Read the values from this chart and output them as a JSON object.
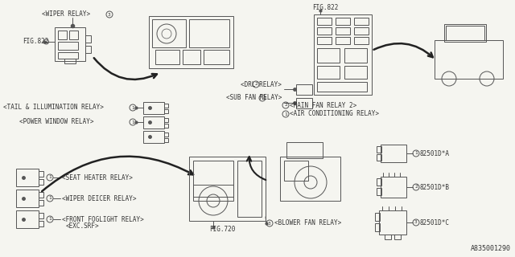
{
  "bg_color": "#f5f5f0",
  "line_color": "#555555",
  "text_color": "#333333",
  "part_number": "A835001290",
  "labels": {
    "wiper_relay": "<WIPER RELAY>",
    "fig822_left": "FIG.822",
    "fig822_right": "FIG.822",
    "tail_relay": "<TAIL & ILLUMINATION RELAY>",
    "power_window": "<POWER WINDOW RELAY>",
    "drl_relay": "<DRL RELAY>",
    "sub_fan_relay": "<SUB FAN RELAY>",
    "main_fan_relay": "<MAIN FAN RELAY 2>",
    "air_cond_relay": "<AIR CONDITIONING RELAY>",
    "seat_heater": "<SEAT HEATER RELAY>",
    "wiper_deicer": "<WIPER DEICER RELAY>",
    "front_foglight": "<FRONT FOGLIGHT RELAY>",
    "exc_srf": "<EXC.SRF>",
    "fig720": "FIG.720",
    "blower_fan": "<BLOWER FAN RELAY>",
    "part_a": "82501D*A",
    "part_b": "82501D*B",
    "part_c": "82501D*C"
  },
  "font_size": 5.5
}
